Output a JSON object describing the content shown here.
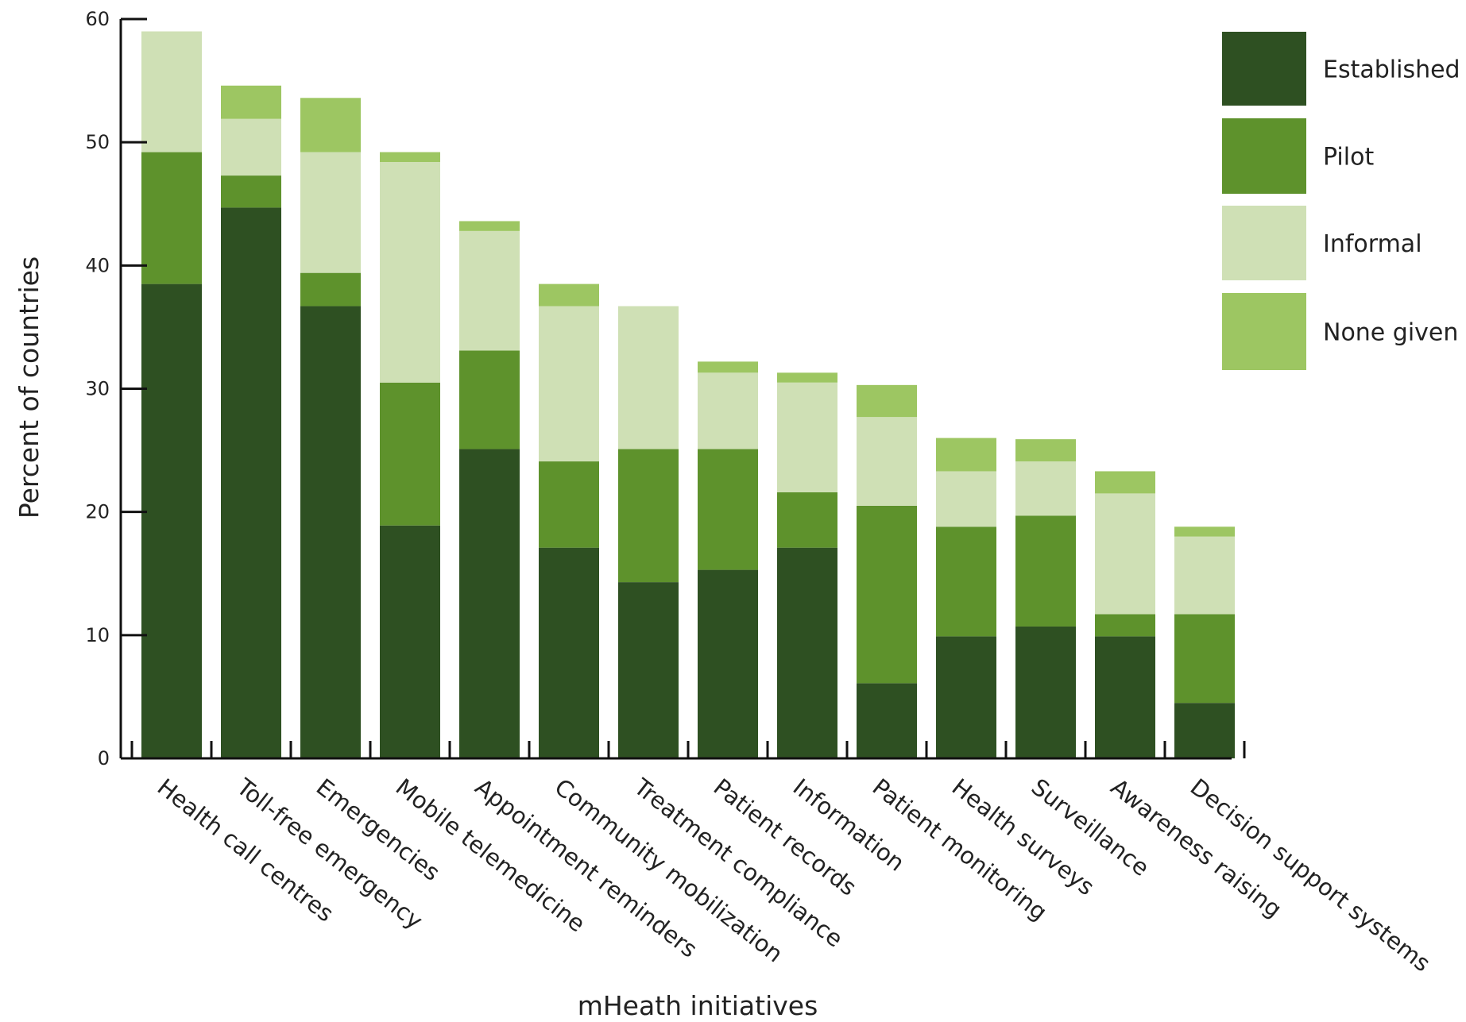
{
  "chart_data": {
    "type": "bar",
    "stacked": true,
    "title": "",
    "xlabel": "mHeath initiatives",
    "ylabel": "Percent of countries",
    "ylim": [
      0,
      60
    ],
    "yticks": [
      0,
      10,
      20,
      30,
      40,
      50,
      60
    ],
    "legend_position": "top-right",
    "categories": [
      "Health call centres",
      "Toll-free emergency",
      "Emergencies",
      "Mobile telemedicine",
      "Appointment reminders",
      "Community mobilization",
      "Treatment compliance",
      "Patient records",
      "Information",
      "Patient monitoring",
      "Health surveys",
      "Surveillance",
      "Awareness raising",
      "Decision support systems"
    ],
    "series": [
      {
        "name": "Established",
        "color": "#2e5022",
        "values": [
          38.5,
          44.7,
          36.7,
          18.9,
          25.1,
          17.1,
          14.3,
          15.3,
          17.1,
          6.1,
          9.9,
          10.7,
          9.9,
          4.5
        ]
      },
      {
        "name": "Pilot",
        "color": "#5e922c",
        "values": [
          10.7,
          2.6,
          2.7,
          11.6,
          8.0,
          7.0,
          10.8,
          9.8,
          4.5,
          14.4,
          8.9,
          9.0,
          1.8,
          7.2
        ]
      },
      {
        "name": "Informal",
        "color": "#cfe0b5",
        "values": [
          9.8,
          4.6,
          9.8,
          17.9,
          9.7,
          12.6,
          11.6,
          6.2,
          8.9,
          7.2,
          4.5,
          4.4,
          9.8,
          6.3
        ]
      },
      {
        "name": "None given",
        "color": "#9dc662",
        "values": [
          0,
          2.7,
          4.4,
          0.8,
          0.8,
          1.8,
          0,
          0.9,
          0.8,
          2.6,
          2.7,
          1.8,
          1.8,
          0.8
        ]
      }
    ]
  }
}
